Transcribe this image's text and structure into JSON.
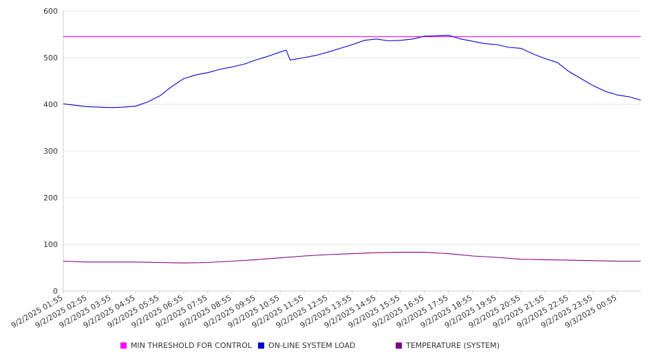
{
  "colors": {
    "threshold": "#ff00ff",
    "load": "#0000cc",
    "temperature": "#800080",
    "grid": "#e6e6e6",
    "axis": "#cccccc",
    "text": "#333333"
  },
  "chart_data": {
    "type": "line",
    "title": "",
    "xlabel": "",
    "ylabel": "",
    "ylim": [
      0,
      600
    ],
    "yticks": [
      0,
      100,
      200,
      300,
      400,
      500,
      600
    ],
    "grid": true,
    "legend_position": "bottom",
    "x_tick_labels": [
      "9/2/2025 01:55",
      "9/2/2025 02:55",
      "9/2/2025 03:55",
      "9/2/2025 04:55",
      "9/2/2025 05:55",
      "9/2/2025 06:55",
      "9/2/2025 07:55",
      "9/2/2025 08:55",
      "9/2/2025 09:55",
      "9/2/2025 10:55",
      "9/2/2025 11:55",
      "9/2/2025 12:55",
      "9/2/2025 13:55",
      "9/2/2025 14:55",
      "9/2/2025 15:55",
      "9/2/2025 16:55",
      "9/2/2025 17:55",
      "9/2/2025 18:55",
      "9/2/2025 19:55",
      "9/2/2025 20:55",
      "9/2/2025 21:55",
      "9/2/2025 22:55",
      "9/2/2025 23:55",
      "9/3/2025 00:55"
    ],
    "series": [
      {
        "name": "MIN THRESHOLD FOR CONTROL",
        "color": "#ff00ff",
        "points": [
          [
            "9/2/2025 01:55",
            545
          ],
          [
            "9/3/2025 01:55",
            545
          ]
        ]
      },
      {
        "name": "ON-LINE SYSTEM LOAD",
        "color": "#0000cc",
        "points": [
          [
            "9/2/2025 01:55",
            401
          ],
          [
            "9/2/2025 02:25",
            398
          ],
          [
            "9/2/2025 02:55",
            395
          ],
          [
            "9/2/2025 03:25",
            394
          ],
          [
            "9/2/2025 03:55",
            393
          ],
          [
            "9/2/2025 04:25",
            394
          ],
          [
            "9/2/2025 04:55",
            396
          ],
          [
            "9/2/2025 05:25",
            405
          ],
          [
            "9/2/2025 05:55",
            418
          ],
          [
            "9/2/2025 06:25",
            438
          ],
          [
            "9/2/2025 06:55",
            455
          ],
          [
            "9/2/2025 07:25",
            463
          ],
          [
            "9/2/2025 07:55",
            468
          ],
          [
            "9/2/2025 08:25",
            475
          ],
          [
            "9/2/2025 08:55",
            480
          ],
          [
            "9/2/2025 09:25",
            486
          ],
          [
            "9/2/2025 09:55",
            495
          ],
          [
            "9/2/2025 10:25",
            503
          ],
          [
            "9/2/2025 10:55",
            512
          ],
          [
            "9/2/2025 11:10",
            516
          ],
          [
            "9/2/2025 11:20",
            495
          ],
          [
            "9/2/2025 11:55",
            500
          ],
          [
            "9/2/2025 12:25",
            505
          ],
          [
            "9/2/2025 12:55",
            512
          ],
          [
            "9/2/2025 13:25",
            520
          ],
          [
            "9/2/2025 13:55",
            528
          ],
          [
            "9/2/2025 14:25",
            537
          ],
          [
            "9/2/2025 14:55",
            540
          ],
          [
            "9/2/2025 15:25",
            536
          ],
          [
            "9/2/2025 15:55",
            537
          ],
          [
            "9/2/2025 16:25",
            540
          ],
          [
            "9/2/2025 16:55",
            546
          ],
          [
            "9/2/2025 17:25",
            547
          ],
          [
            "9/2/2025 17:55",
            548
          ],
          [
            "9/2/2025 18:25",
            540
          ],
          [
            "9/2/2025 18:55",
            535
          ],
          [
            "9/2/2025 19:25",
            530
          ],
          [
            "9/2/2025 19:55",
            528
          ],
          [
            "9/2/2025 20:25",
            522
          ],
          [
            "9/2/2025 20:55",
            520
          ],
          [
            "9/2/2025 21:25",
            508
          ],
          [
            "9/2/2025 21:55",
            498
          ],
          [
            "9/2/2025 22:25",
            490
          ],
          [
            "9/2/2025 22:55",
            470
          ],
          [
            "9/2/2025 23:25",
            455
          ],
          [
            "9/2/2025 23:55",
            440
          ],
          [
            "9/3/2025 00:25",
            428
          ],
          [
            "9/3/2025 00:55",
            420
          ],
          [
            "9/3/2025 01:25",
            416
          ],
          [
            "9/3/2025 01:55",
            409
          ]
        ]
      },
      {
        "name": "TEMPERATURE (SYSTEM)",
        "color": "#800080",
        "points": [
          [
            "9/2/2025 01:55",
            64
          ],
          [
            "9/2/2025 02:55",
            62
          ],
          [
            "9/2/2025 03:55",
            62
          ],
          [
            "9/2/2025 04:55",
            62
          ],
          [
            "9/2/2025 05:55",
            61
          ],
          [
            "9/2/2025 06:55",
            60
          ],
          [
            "9/2/2025 07:55",
            61
          ],
          [
            "9/2/2025 08:55",
            64
          ],
          [
            "9/2/2025 09:55",
            67
          ],
          [
            "9/2/2025 10:55",
            71
          ],
          [
            "9/2/2025 11:55",
            75
          ],
          [
            "9/2/2025 12:55",
            78
          ],
          [
            "9/2/2025 13:55",
            80
          ],
          [
            "9/2/2025 14:55",
            82
          ],
          [
            "9/2/2025 15:55",
            83
          ],
          [
            "9/2/2025 16:55",
            83
          ],
          [
            "9/2/2025 17:55",
            80
          ],
          [
            "9/2/2025 18:55",
            75
          ],
          [
            "9/2/2025 19:55",
            72
          ],
          [
            "9/2/2025 20:55",
            68
          ],
          [
            "9/2/2025 21:55",
            67
          ],
          [
            "9/2/2025 22:55",
            66
          ],
          [
            "9/2/2025 23:55",
            65
          ],
          [
            "9/3/2025 00:55",
            64
          ],
          [
            "9/3/2025 01:55",
            64
          ]
        ]
      }
    ]
  }
}
